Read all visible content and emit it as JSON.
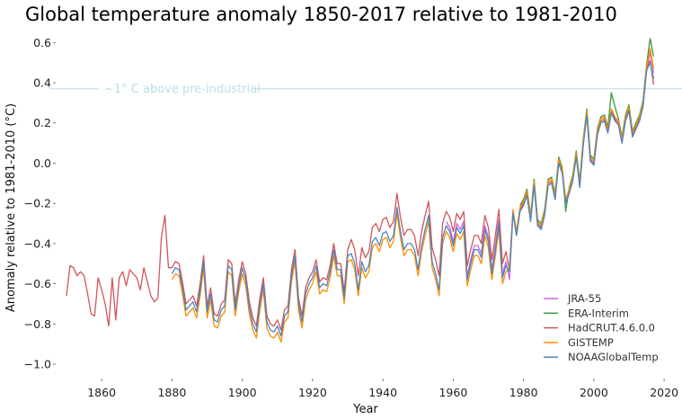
{
  "chart_data": {
    "type": "line",
    "title": "Global temperature anomaly 1850-2017 relative to 1981-2010",
    "xlabel": "Year",
    "ylabel": "Anomaly relative to 1981-2010 (°C)",
    "xlim": [
      1850,
      2020
    ],
    "ylim": [
      -1.0,
      0.6
    ],
    "xticks": [
      1860,
      1880,
      1900,
      1920,
      1940,
      1960,
      1980,
      2000,
      2020
    ],
    "yticks": [
      "0.6",
      "0.4",
      "0.2",
      "0.0",
      "−0.2",
      "−0.4",
      "−0.6",
      "−0.8",
      "−1.0"
    ],
    "ytick_values": [
      0.6,
      0.4,
      0.2,
      0.0,
      -0.2,
      -0.4,
      -0.6,
      -0.8,
      -1.0
    ],
    "grid": false,
    "legend_position": "bottom-right",
    "reference_line": {
      "value": 0.37,
      "label": "~1° C above pre-industrial",
      "color": "#b7e0ea"
    },
    "series": [
      {
        "name": "JRA-55",
        "color": "#cc66dd",
        "start_year": 1958,
        "values": [
          -0.29,
          -0.32,
          -0.39,
          -0.3,
          -0.33,
          -0.29,
          -0.56,
          -0.48,
          -0.41,
          -0.41,
          -0.45,
          -0.31,
          -0.37,
          -0.53,
          -0.41,
          -0.28,
          -0.55,
          -0.49,
          -0.58,
          -0.25,
          -0.36,
          -0.24,
          -0.21,
          -0.16,
          -0.29,
          -0.11,
          -0.31,
          -0.33,
          -0.26,
          -0.11,
          -0.1,
          -0.18,
          0.0,
          -0.05,
          -0.2,
          -0.15,
          -0.09,
          0.06,
          -0.12,
          0.09,
          0.24,
          0.01,
          -0.01,
          0.14,
          0.2,
          0.21,
          0.15,
          0.25,
          0.21,
          0.19,
          0.1,
          0.21,
          0.26,
          0.13,
          0.17,
          0.21,
          0.28,
          0.46,
          0.55,
          0.45
        ]
      },
      {
        "name": "ERA-Interim",
        "color": "#3a9a3a",
        "start_year": 1979,
        "values": [
          -0.21,
          -0.18,
          -0.13,
          -0.26,
          -0.08,
          -0.28,
          -0.3,
          -0.23,
          -0.08,
          -0.07,
          -0.15,
          0.03,
          -0.02,
          -0.24,
          -0.12,
          -0.06,
          0.06,
          -0.09,
          0.12,
          0.27,
          0.04,
          0.02,
          0.17,
          0.23,
          0.24,
          0.18,
          0.35,
          0.28,
          0.22,
          0.13,
          0.24,
          0.29,
          0.16,
          0.2,
          0.24,
          0.31,
          0.49,
          0.62,
          0.53
        ]
      },
      {
        "name": "HadCRUT.4.6.0.0",
        "color": "#d0555a",
        "start_year": 1850,
        "values": [
          -0.66,
          -0.51,
          -0.52,
          -0.56,
          -0.54,
          -0.56,
          -0.65,
          -0.75,
          -0.76,
          -0.57,
          -0.63,
          -0.7,
          -0.81,
          -0.57,
          -0.78,
          -0.57,
          -0.54,
          -0.61,
          -0.53,
          -0.55,
          -0.57,
          -0.63,
          -0.52,
          -0.59,
          -0.66,
          -0.69,
          -0.67,
          -0.37,
          -0.26,
          -0.52,
          -0.52,
          -0.49,
          -0.5,
          -0.59,
          -0.7,
          -0.68,
          -0.66,
          -0.71,
          -0.6,
          -0.46,
          -0.71,
          -0.62,
          -0.75,
          -0.76,
          -0.7,
          -0.68,
          -0.48,
          -0.5,
          -0.7,
          -0.58,
          -0.49,
          -0.55,
          -0.69,
          -0.77,
          -0.81,
          -0.67,
          -0.57,
          -0.76,
          -0.8,
          -0.81,
          -0.78,
          -0.83,
          -0.73,
          -0.71,
          -0.53,
          -0.43,
          -0.67,
          -0.76,
          -0.62,
          -0.57,
          -0.54,
          -0.48,
          -0.59,
          -0.57,
          -0.58,
          -0.51,
          -0.4,
          -0.5,
          -0.5,
          -0.64,
          -0.43,
          -0.38,
          -0.43,
          -0.56,
          -0.42,
          -0.47,
          -0.44,
          -0.32,
          -0.3,
          -0.34,
          -0.28,
          -0.27,
          -0.32,
          -0.29,
          -0.15,
          -0.27,
          -0.36,
          -0.33,
          -0.33,
          -0.36,
          -0.46,
          -0.34,
          -0.26,
          -0.19,
          -0.42,
          -0.48,
          -0.56,
          -0.3,
          -0.24,
          -0.27,
          -0.34,
          -0.25,
          -0.28,
          -0.24,
          -0.51,
          -0.43,
          -0.36,
          -0.36,
          -0.4,
          -0.26,
          -0.32,
          -0.48,
          -0.36,
          -0.23,
          -0.5,
          -0.44,
          -0.53,
          -0.24,
          -0.35,
          -0.23,
          -0.2,
          -0.15,
          -0.28,
          -0.1,
          -0.3,
          -0.32,
          -0.25,
          -0.1,
          -0.09,
          -0.17,
          0.01,
          -0.04,
          -0.19,
          -0.14,
          -0.08,
          0.04,
          -0.11,
          0.1,
          0.25,
          0.02,
          0.0,
          0.15,
          0.21,
          0.22,
          0.16,
          0.26,
          0.22,
          0.2,
          0.11,
          0.22,
          0.27,
          0.14,
          0.18,
          0.22,
          0.29,
          0.47,
          0.51,
          0.39
        ]
      },
      {
        "name": "GISTEMP",
        "color": "#ff8c00",
        "start_year": 1880,
        "values": [
          -0.58,
          -0.55,
          -0.56,
          -0.65,
          -0.76,
          -0.74,
          -0.72,
          -0.77,
          -0.66,
          -0.52,
          -0.77,
          -0.68,
          -0.81,
          -0.82,
          -0.76,
          -0.74,
          -0.54,
          -0.56,
          -0.76,
          -0.64,
          -0.55,
          -0.61,
          -0.75,
          -0.83,
          -0.87,
          -0.73,
          -0.63,
          -0.82,
          -0.86,
          -0.87,
          -0.84,
          -0.89,
          -0.79,
          -0.77,
          -0.59,
          -0.49,
          -0.73,
          -0.82,
          -0.68,
          -0.63,
          -0.6,
          -0.54,
          -0.65,
          -0.63,
          -0.64,
          -0.57,
          -0.46,
          -0.56,
          -0.56,
          -0.7,
          -0.49,
          -0.48,
          -0.53,
          -0.66,
          -0.52,
          -0.57,
          -0.54,
          -0.42,
          -0.4,
          -0.44,
          -0.38,
          -0.37,
          -0.42,
          -0.39,
          -0.25,
          -0.37,
          -0.46,
          -0.43,
          -0.43,
          -0.46,
          -0.56,
          -0.44,
          -0.36,
          -0.29,
          -0.52,
          -0.58,
          -0.66,
          -0.4,
          -0.34,
          -0.37,
          -0.44,
          -0.35,
          -0.38,
          -0.34,
          -0.61,
          -0.53,
          -0.46,
          -0.46,
          -0.5,
          -0.36,
          -0.42,
          -0.58,
          -0.46,
          -0.33,
          -0.6,
          -0.54,
          -0.52,
          -0.23,
          -0.34,
          -0.22,
          -0.19,
          -0.14,
          -0.27,
          -0.09,
          -0.29,
          -0.31,
          -0.24,
          -0.09,
          -0.08,
          -0.16,
          0.02,
          -0.03,
          -0.18,
          -0.13,
          -0.07,
          0.05,
          -0.1,
          0.11,
          0.26,
          0.03,
          0.01,
          0.16,
          0.22,
          0.23,
          0.17,
          0.27,
          0.23,
          0.21,
          0.12,
          0.23,
          0.28,
          0.15,
          0.19,
          0.23,
          0.3,
          0.48,
          0.57,
          0.47
        ]
      },
      {
        "name": "NOAAGlobalTemp",
        "color": "#4a86c0",
        "start_year": 1880,
        "values": [
          -0.55,
          -0.52,
          -0.53,
          -0.62,
          -0.73,
          -0.71,
          -0.69,
          -0.74,
          -0.63,
          -0.49,
          -0.74,
          -0.65,
          -0.78,
          -0.79,
          -0.73,
          -0.71,
          -0.51,
          -0.53,
          -0.73,
          -0.61,
          -0.52,
          -0.58,
          -0.72,
          -0.8,
          -0.84,
          -0.7,
          -0.6,
          -0.79,
          -0.83,
          -0.84,
          -0.81,
          -0.86,
          -0.76,
          -0.74,
          -0.56,
          -0.46,
          -0.7,
          -0.79,
          -0.65,
          -0.6,
          -0.57,
          -0.51,
          -0.62,
          -0.6,
          -0.61,
          -0.54,
          -0.43,
          -0.53,
          -0.53,
          -0.67,
          -0.46,
          -0.45,
          -0.5,
          -0.63,
          -0.49,
          -0.54,
          -0.51,
          -0.39,
          -0.37,
          -0.41,
          -0.35,
          -0.34,
          -0.39,
          -0.36,
          -0.22,
          -0.34,
          -0.43,
          -0.4,
          -0.4,
          -0.43,
          -0.53,
          -0.41,
          -0.33,
          -0.26,
          -0.49,
          -0.55,
          -0.63,
          -0.37,
          -0.31,
          -0.34,
          -0.41,
          -0.32,
          -0.35,
          -0.31,
          -0.58,
          -0.5,
          -0.43,
          -0.43,
          -0.47,
          -0.33,
          -0.39,
          -0.55,
          -0.43,
          -0.3,
          -0.57,
          -0.51,
          -0.54,
          -0.25,
          -0.36,
          -0.24,
          -0.21,
          -0.16,
          -0.29,
          -0.11,
          -0.31,
          -0.33,
          -0.26,
          -0.11,
          -0.1,
          -0.18,
          0.0,
          -0.05,
          -0.2,
          -0.15,
          -0.09,
          0.03,
          -0.12,
          0.09,
          0.24,
          0.01,
          -0.01,
          0.14,
          0.2,
          0.21,
          0.15,
          0.25,
          0.21,
          0.19,
          0.1,
          0.21,
          0.26,
          0.13,
          0.17,
          0.21,
          0.28,
          0.46,
          0.5,
          0.42
        ]
      }
    ]
  }
}
